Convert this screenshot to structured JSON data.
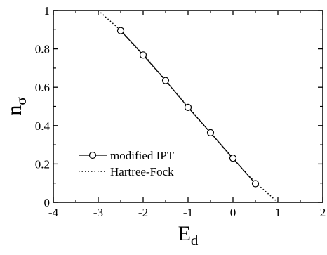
{
  "chart_data": {
    "type": "line",
    "title": "",
    "xlabel": "E",
    "xlabel_sub": "d",
    "ylabel": "n",
    "ylabel_sub": "σ",
    "xlim": [
      -4,
      2
    ],
    "ylim": [
      0,
      1
    ],
    "x_ticks": [
      -4,
      -3,
      -2,
      -1,
      0,
      1,
      2
    ],
    "x_tick_labels": [
      "-4",
      "-3",
      "-2",
      "-1",
      "0",
      "1",
      "2"
    ],
    "y_ticks": [
      0,
      0.2,
      0.4,
      0.6,
      0.8,
      1
    ],
    "y_tick_labels": [
      "0",
      "0.2",
      "0.4",
      "0.6",
      "0.8",
      "1"
    ],
    "grid": false,
    "legend_position": "bottom-left",
    "series": [
      {
        "name": "modified IPT",
        "style": "solid-line-open-circles",
        "color": "#000000",
        "x": [
          -2.5,
          -2.0,
          -1.5,
          -1.0,
          -0.5,
          0.0,
          0.5
        ],
        "y": [
          0.895,
          0.768,
          0.635,
          0.495,
          0.363,
          0.23,
          0.097
        ]
      },
      {
        "name": "Hartree-Fock",
        "style": "dotted-line",
        "color": "#000000",
        "x": [
          -3.0,
          -2.5,
          -2.0,
          -1.5,
          -1.0,
          -0.5,
          0.0,
          0.5,
          1.0
        ],
        "y": [
          1.0,
          0.897,
          0.773,
          0.637,
          0.5,
          0.363,
          0.227,
          0.103,
          0.0
        ]
      }
    ]
  }
}
